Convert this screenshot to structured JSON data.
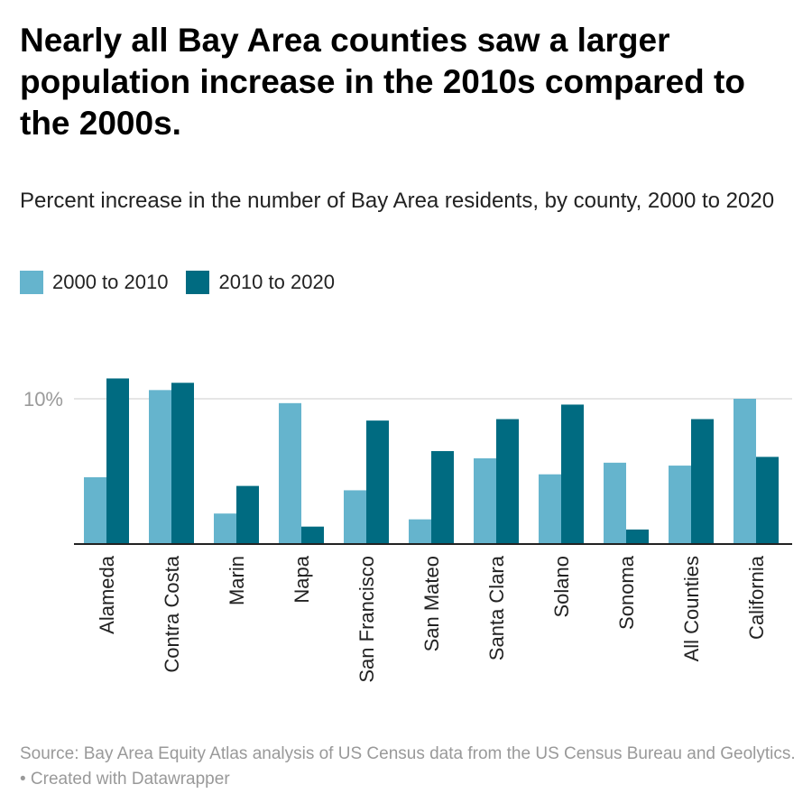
{
  "title": "Nearly all Bay Area counties saw a larger population increase in the 2010s compared to the 2000s.",
  "subtitle": "Percent increase in the number of Bay Area residents, by county, 2000 to 2020",
  "source": "Source: Bay Area Equity Atlas analysis of US Census data from the US Census Bureau and Geolytics. • Created with Datawrapper",
  "chart_data": {
    "type": "bar",
    "categories": [
      "Alameda",
      "Contra Costa",
      "Marin",
      "Napa",
      "San Francisco",
      "San Mateo",
      "Santa Clara",
      "Solano",
      "Sonoma",
      "All Counties",
      "California"
    ],
    "series": [
      {
        "name": "2000 to 2010",
        "color": "#65b4cd",
        "values": [
          4.6,
          10.6,
          2.1,
          9.7,
          3.7,
          1.7,
          5.9,
          4.8,
          5.6,
          5.4,
          10.0
        ]
      },
      {
        "name": "2010 to 2020",
        "color": "#006b81",
        "values": [
          11.4,
          11.1,
          4.0,
          1.2,
          8.5,
          6.4,
          8.6,
          9.6,
          1.0,
          8.6,
          6.0
        ]
      }
    ],
    "yticks": [
      {
        "value": 10,
        "label": "10%"
      }
    ],
    "ylim": [
      0,
      12
    ],
    "grid": true,
    "legend": "top-left"
  }
}
